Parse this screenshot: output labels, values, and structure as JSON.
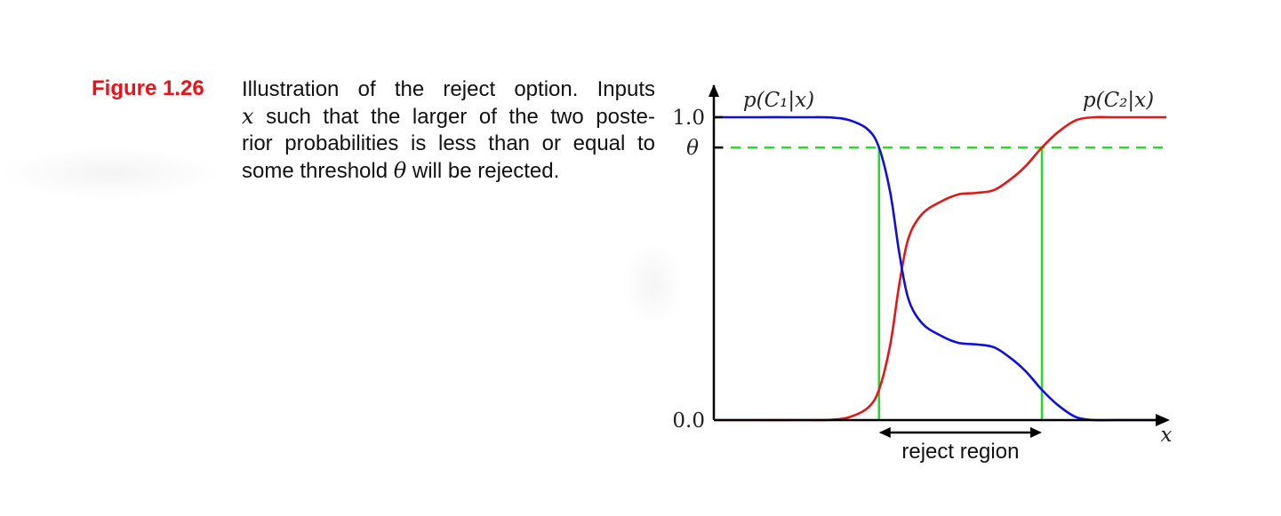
{
  "figure": {
    "label": "Figure 1.26",
    "caption_lines": [
      {
        "parts": [
          {
            "t": "Illustration of the reject option.  Inputs"
          }
        ]
      },
      {
        "parts": [
          {
            "t": "x",
            "math": true
          },
          {
            "t": " such that the larger of the two poste-"
          }
        ]
      },
      {
        "parts": [
          {
            "t": "rior probabilities is less than or equal to"
          }
        ]
      },
      {
        "parts": [
          {
            "t": "some threshold "
          },
          {
            "t": "θ",
            "math": true
          },
          {
            "t": " will be rejected."
          }
        ]
      }
    ]
  },
  "chart_data": {
    "type": "line",
    "title": "",
    "xlabel": "x",
    "ylabel": "",
    "ylim": [
      0,
      1
    ],
    "y_ticks": [
      {
        "value": 0.0,
        "label": "0.0"
      },
      {
        "value": 1.0,
        "label": "1.0"
      }
    ],
    "threshold": {
      "value": 0.9,
      "label": "θ",
      "color": "#22dd22"
    },
    "reject_region": {
      "label": "reject region",
      "x_start": 0.365,
      "x_end": 0.725,
      "color": "#22dd22"
    },
    "series": [
      {
        "name": "p(C₁|x)",
        "color": "#1010dd",
        "x": [
          0.0,
          0.1,
          0.2,
          0.26,
          0.3,
          0.34,
          0.365,
          0.39,
          0.41,
          0.43,
          0.46,
          0.5,
          0.54,
          0.58,
          0.62,
          0.66,
          0.69,
          0.725,
          0.76,
          0.8,
          0.84,
          0.88,
          0.92,
          1.0
        ],
        "y": [
          1.0,
          1.0,
          1.0,
          0.999,
          0.99,
          0.96,
          0.9,
          0.75,
          0.55,
          0.4,
          0.32,
          0.28,
          0.255,
          0.25,
          0.24,
          0.2,
          0.16,
          0.1,
          0.05,
          0.01,
          0.0,
          0.0,
          0.0,
          0.0
        ]
      },
      {
        "name": "p(C₂|x)",
        "color": "#e01818",
        "x": [
          0.0,
          0.1,
          0.2,
          0.26,
          0.3,
          0.34,
          0.365,
          0.39,
          0.41,
          0.43,
          0.46,
          0.5,
          0.54,
          0.58,
          0.62,
          0.66,
          0.69,
          0.725,
          0.76,
          0.8,
          0.84,
          0.88,
          0.92,
          1.0
        ],
        "y": [
          0.0,
          0.0,
          0.0,
          0.001,
          0.01,
          0.04,
          0.1,
          0.25,
          0.45,
          0.6,
          0.68,
          0.72,
          0.745,
          0.75,
          0.76,
          0.8,
          0.84,
          0.9,
          0.95,
          0.99,
          1.0,
          1.0,
          1.0,
          1.0
        ]
      }
    ]
  }
}
